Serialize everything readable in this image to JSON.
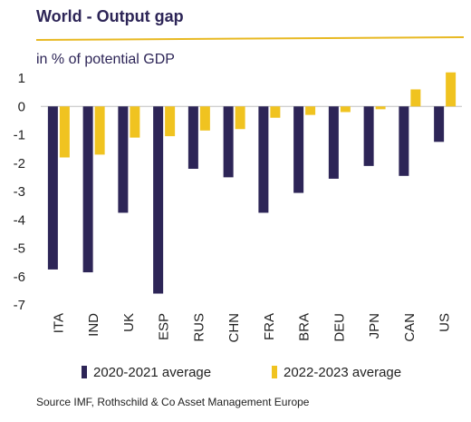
{
  "header": {
    "title": "World - Output gap",
    "subtitle": "in % of potential GDP"
  },
  "colors": {
    "title_text": "#2d2557",
    "title_line": "#e8b923",
    "series_2020": "#2d2557",
    "series_2022": "#f0c320"
  },
  "chart_data": {
    "type": "bar",
    "title": "World - Output gap",
    "subtitle": "in % of potential GDP",
    "categories": [
      "ITA",
      "IND",
      "UK",
      "ESP",
      "RUS",
      "CHN",
      "FRA",
      "BRA",
      "DEU",
      "JPN",
      "CAN",
      "US"
    ],
    "series": [
      {
        "name": "2020-2021 average",
        "color": "#2d2557",
        "values": [
          -5.75,
          -5.85,
          -3.75,
          -6.6,
          -2.2,
          -2.5,
          -3.75,
          -3.05,
          -2.55,
          -2.1,
          -2.45,
          -1.25
        ]
      },
      {
        "name": "2022-2023 average",
        "color": "#f0c320",
        "values": [
          -1.8,
          -1.7,
          -1.1,
          -1.05,
          -0.85,
          -0.8,
          -0.4,
          -0.3,
          -0.2,
          -0.1,
          0.6,
          1.2
        ]
      }
    ],
    "ylim": [
      -7,
      1
    ],
    "yticks": [
      1,
      0,
      -1,
      -2,
      -3,
      -4,
      -5,
      -6,
      -7
    ],
    "grid": false,
    "legend": "bottom",
    "source": "Source IMF, Rothschild & Co Asset Management Europe"
  }
}
